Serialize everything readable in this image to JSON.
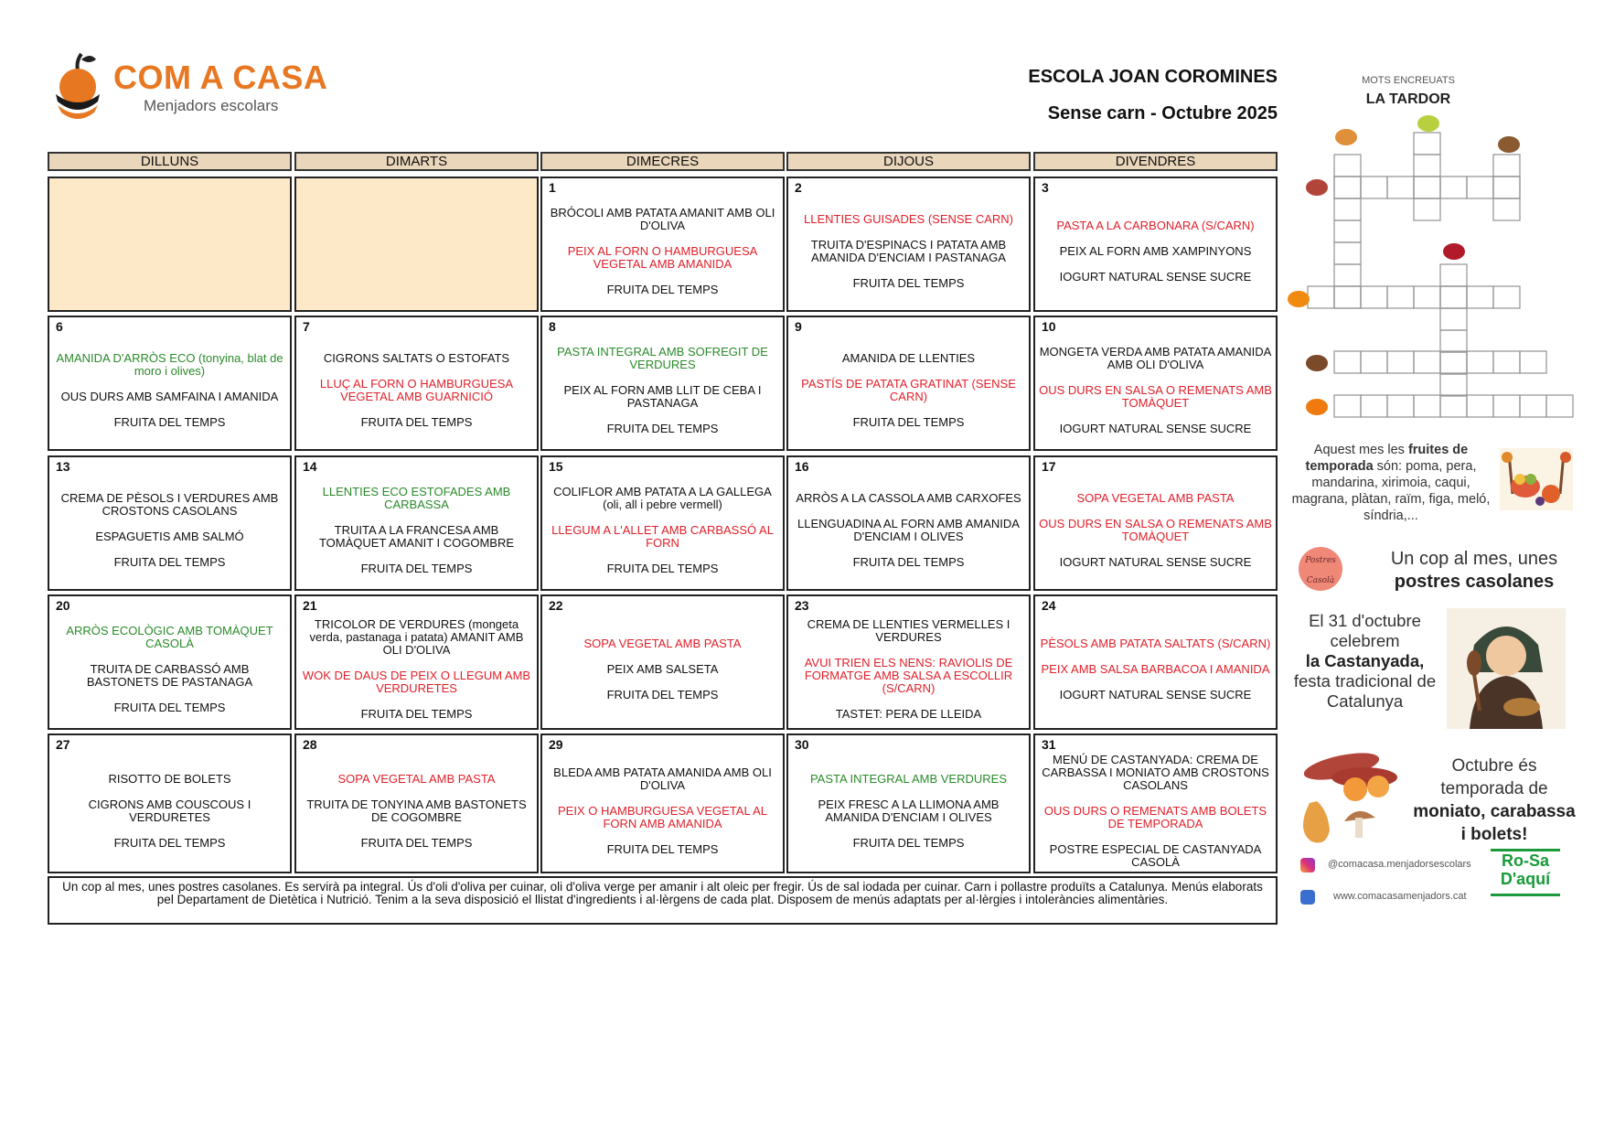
{
  "header": {
    "logo_text": "COM A CASA",
    "logo_subtitle": "Menjadors escolars",
    "school": "ESCOLA JOAN COROMINES",
    "subtitle": "Sense carn - Octubre 2025",
    "brand_color": "#e87722"
  },
  "weekdays": [
    "DILLUNS",
    "DIMARTS",
    "DIMECRES",
    "DIJOUS",
    "DIVENDRES"
  ],
  "colors": {
    "red": "#e0202a",
    "green": "#2a8a2a",
    "black": "#111111",
    "header_bg": "#ead6bb",
    "empty_bg": "#fde9c8"
  },
  "weeks": [
    [
      {
        "day": "",
        "items": []
      },
      {
        "day": "",
        "items": []
      },
      {
        "day": "1",
        "items": [
          {
            "text": "BRÓCOLI AMB PATATA AMANIT AMB OLI D'OLIVA",
            "color": "black"
          },
          {
            "text": "PEIX AL FORN O HAMBURGUESA VEGETAL AMB AMANIDA",
            "color": "red"
          },
          {
            "text": "FRUITA DEL TEMPS",
            "color": "black"
          }
        ]
      },
      {
        "day": "2",
        "items": [
          {
            "text": "LLENTIES GUISADES (SENSE CARN)",
            "color": "red"
          },
          {
            "text": "TRUITA D'ESPINACS I PATATA AMB AMANIDA D'ENCIAM I PASTANAGA",
            "color": "black"
          },
          {
            "text": "FRUITA DEL TEMPS",
            "color": "black"
          }
        ]
      },
      {
        "day": "3",
        "items": [
          {
            "text": "PASTA A LA CARBONARA (S/CARN)",
            "color": "red"
          },
          {
            "text": "PEIX AL FORN AMB XAMPINYONS",
            "color": "black"
          },
          {
            "text": "IOGURT NATURAL SENSE SUCRE",
            "color": "black"
          }
        ]
      }
    ],
    [
      {
        "day": "6",
        "items": [
          {
            "text": "AMANIDA D'ARRÒS ECO (tonyina, blat de moro i olives)",
            "color": "green"
          },
          {
            "text": "OUS DURS AMB SAMFAINA I AMANIDA",
            "color": "black"
          },
          {
            "text": "FRUITA DEL TEMPS",
            "color": "black"
          }
        ]
      },
      {
        "day": "7",
        "items": [
          {
            "text": "CIGRONS SALTATS O ESTOFATS",
            "color": "black"
          },
          {
            "text": "LLUÇ AL FORN O HAMBURGUESA VEGETAL AMB GUARNICIÓ",
            "color": "red"
          },
          {
            "text": "FRUITA DEL TEMPS",
            "color": "black"
          }
        ]
      },
      {
        "day": "8",
        "items": [
          {
            "text": "PASTA INTEGRAL AMB SOFREGIT DE VERDURES",
            "color": "green"
          },
          {
            "text": "PEIX AL FORN AMB LLIT DE CEBA I PASTANAGA",
            "color": "black"
          },
          {
            "text": "FRUITA DEL TEMPS",
            "color": "black"
          }
        ]
      },
      {
        "day": "9",
        "items": [
          {
            "text": "AMANIDA DE LLENTIES",
            "color": "black"
          },
          {
            "text": "PASTÍS DE PATATA GRATINAT (SENSE CARN)",
            "color": "red"
          },
          {
            "text": "FRUITA DEL TEMPS",
            "color": "black"
          }
        ]
      },
      {
        "day": "10",
        "items": [
          {
            "text": "MONGETA VERDA AMB PATATA AMANIDA AMB OLI D'OLIVA",
            "color": "black"
          },
          {
            "text": "OUS DURS EN SALSA O REMENATS AMB TOMÀQUET",
            "color": "red"
          },
          {
            "text": "IOGURT NATURAL SENSE SUCRE",
            "color": "black"
          }
        ]
      }
    ],
    [
      {
        "day": "13",
        "items": [
          {
            "text": "CREMA DE PÈSOLS I VERDURES AMB CROSTONS CASOLANS",
            "color": "black"
          },
          {
            "text": "ESPAGUETIS AMB SALMÓ",
            "color": "black"
          },
          {
            "text": "FRUITA DEL TEMPS",
            "color": "black"
          }
        ]
      },
      {
        "day": "14",
        "items": [
          {
            "text": "LLENTIES ECO ESTOFADES AMB CARBASSA",
            "color": "green"
          },
          {
            "text": "TRUITA A LA FRANCESA AMB TOMÀQUET AMANIT I COGOMBRE",
            "color": "black"
          },
          {
            "text": "FRUITA DEL TEMPS",
            "color": "black"
          }
        ]
      },
      {
        "day": "15",
        "items": [
          {
            "text": "COLIFLOR AMB PATATA A LA GALLEGA (oli, all i pebre vermell)",
            "color": "black"
          },
          {
            "text": "LLEGUM A L'ALLET AMB CARBASSÓ AL FORN",
            "color": "red"
          },
          {
            "text": "FRUITA DEL TEMPS",
            "color": "black"
          }
        ]
      },
      {
        "day": "16",
        "items": [
          {
            "text": "ARRÒS A LA CASSOLA AMB CARXOFES",
            "color": "black"
          },
          {
            "text": "LLENGUADINA AL FORN AMB AMANIDA D'ENCIAM I OLIVES",
            "color": "black"
          },
          {
            "text": "FRUITA DEL TEMPS",
            "color": "black"
          }
        ]
      },
      {
        "day": "17",
        "items": [
          {
            "text": "SOPA VEGETAL AMB PASTA",
            "color": "red"
          },
          {
            "text": "OUS DURS EN SALSA O REMENATS AMB TOMÀQUET",
            "color": "red"
          },
          {
            "text": "IOGURT NATURAL SENSE SUCRE",
            "color": "black"
          }
        ]
      }
    ],
    [
      {
        "day": "20",
        "items": [
          {
            "text": "ARRÒS ECOLÒGIC AMB TOMÀQUET CASOLÀ",
            "color": "green"
          },
          {
            "text": "TRUITA DE CARBASSÓ AMB BASTONETS DE PASTANAGA",
            "color": "black"
          },
          {
            "text": "FRUITA DEL TEMPS",
            "color": "black"
          }
        ]
      },
      {
        "day": "21",
        "items": [
          {
            "text": "TRICOLOR DE VERDURES (mongeta verda, pastanaga i patata) AMANIT AMB OLI D'OLIVA",
            "color": "black"
          },
          {
            "text": "WOK DE DAUS DE PEIX O LLEGUM AMB VERDURETES",
            "color": "red"
          },
          {
            "text": "FRUITA DEL TEMPS",
            "color": "black"
          }
        ]
      },
      {
        "day": "22",
        "items": [
          {
            "text": "SOPA VEGETAL AMB PASTA",
            "color": "red"
          },
          {
            "text": "PEIX AMB SALSETA",
            "color": "black"
          },
          {
            "text": "FRUITA DEL TEMPS",
            "color": "black"
          }
        ]
      },
      {
        "day": "23",
        "items": [
          {
            "text": "CREMA DE LLENTIES VERMELLES I VERDURES",
            "color": "black"
          },
          {
            "text": "AVUI TRIEN ELS NENS: RAVIOLIS DE FORMATGE AMB SALSA A ESCOLLIR (S/CARN)",
            "color": "red"
          },
          {
            "text": "TASTET: PERA DE LLEIDA",
            "color": "black"
          }
        ]
      },
      {
        "day": "24",
        "items": [
          {
            "text": "PÈSOLS AMB PATATA SALTATS (S/CARN)",
            "color": "red"
          },
          {
            "text": "PEIX AMB SALSA BARBACOA I AMANIDA",
            "color": "red"
          },
          {
            "text": "IOGURT NATURAL SENSE SUCRE",
            "color": "black"
          }
        ]
      }
    ],
    [
      {
        "day": "27",
        "items": [
          {
            "text": "RISOTTO DE BOLETS",
            "color": "black"
          },
          {
            "text": "CIGRONS AMB COUSCOUS I VERDURETES",
            "color": "black"
          },
          {
            "text": "FRUITA DEL TEMPS",
            "color": "black"
          }
        ]
      },
      {
        "day": "28",
        "items": [
          {
            "text": "SOPA VEGETAL AMB PASTA",
            "color": "red"
          },
          {
            "text": "TRUITA DE TONYINA AMB BASTONETS DE COGOMBRE",
            "color": "black"
          },
          {
            "text": "FRUITA DEL TEMPS",
            "color": "black"
          }
        ]
      },
      {
        "day": "29",
        "items": [
          {
            "text": "BLEDA AMB PATATA AMANIDA AMB OLI D'OLIVA",
            "color": "black"
          },
          {
            "text": "PEIX O HAMBURGUESA VEGETAL AL FORN AMB AMANIDA",
            "color": "red"
          },
          {
            "text": "FRUITA DEL TEMPS",
            "color": "black"
          }
        ]
      },
      {
        "day": "30",
        "items": [
          {
            "text": "PASTA INTEGRAL AMB VERDURES",
            "color": "green"
          },
          {
            "text": "PEIX FRESC A LA LLIMONA AMB AMANIDA D'ENCIAM I OLIVES",
            "color": "black"
          },
          {
            "text": "FRUITA DEL TEMPS",
            "color": "black"
          }
        ]
      },
      {
        "day": "31",
        "items": [
          {
            "text": "MENÚ DE CASTANYADA: CREMA DE CARBASSA I MONIATO AMB CROSTONS CASOLANS",
            "color": "black"
          },
          {
            "text": "OUS DURS O REMENATS AMB BOLETS DE TEMPORADA",
            "color": "red"
          },
          {
            "text": "POSTRE ESPECIAL DE CASTANYADA CASOLÀ",
            "color": "black"
          }
        ]
      }
    ]
  ],
  "footer": "Un cop al mes, unes postres casolanes. Es servirà pa integral. Ús d'oli d'oliva per cuinar, oli d'oliva verge per amanir i alt oleic per fregir. Ús de sal iodada per cuinar. Carn i pollastre produïts a Catalunya. Menús elaborats pel Departament de Dietètica i Nutrició. Tenim a la seva disposició el llistat d'ingredients i al·lèrgens de cada plat. Disposem de menús adaptats per al·lèrgies i intoleràncies alimentàries.",
  "sidebar": {
    "crossword_kicker": "MOTS ENCREUATS",
    "crossword_title": "LA TARDOR",
    "fruits_pre": "Aquest mes les ",
    "fruits_bold": "fruites de temporada",
    "fruits_post": " són:  poma, pera, mandarina, xirimoia, caqui, magrana, plàtan, raïm, figa, meló, síndria,...",
    "postres_badge": "Postres Casolà",
    "postres_line1": "Un cop al mes, unes",
    "postres_line2": "postres casolanes",
    "castanyada_pre": "El 31 d'octubre celebrem",
    "castanyada_bold": "la Castanyada,",
    "castanyada_post": "festa tradicional de Catalunya",
    "season_pre": "Octubre és temporada de",
    "season_bold": "moniato, carabassa i bolets!",
    "instagram": "@comacasa.menjadorsescolars",
    "website": "www.comacasamenjadors.cat",
    "rosa_logo": "Ro-Sa D'aquí"
  }
}
